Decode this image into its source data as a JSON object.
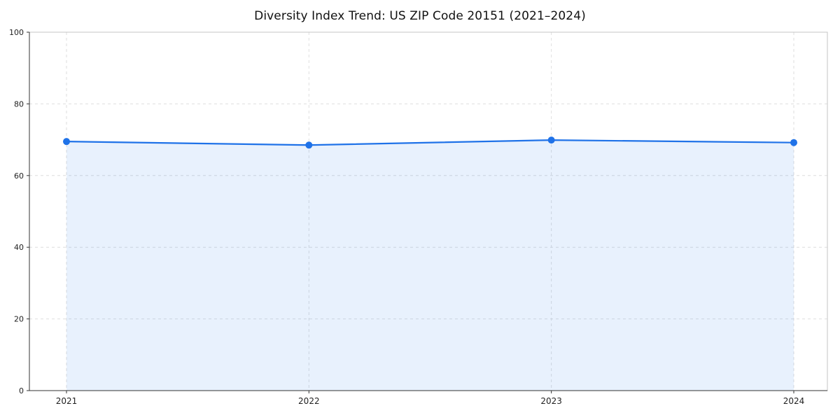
{
  "chart_data": {
    "type": "area",
    "title": "Diversity Index Trend: US ZIP Code 20151 (2021–2024)",
    "series_name": "Diversity Index",
    "x": [
      "2021",
      "2022",
      "2023",
      "2024"
    ],
    "values": [
      69.5,
      68.5,
      69.9,
      69.2
    ],
    "xlabel": "",
    "ylabel": "",
    "ylim": [
      0,
      100
    ],
    "yticks": [
      0,
      20,
      40,
      60,
      80,
      100
    ],
    "grid": "dashed",
    "legend": "none",
    "colors": {
      "line": "#1f72e8",
      "marker": "#1f72e8",
      "fill": "#1f72e8",
      "fill_opacity": 0.1,
      "grid": "#dedede",
      "frame": "#c4c4c4",
      "axis": "#333333",
      "tick_text": "#222222"
    }
  }
}
